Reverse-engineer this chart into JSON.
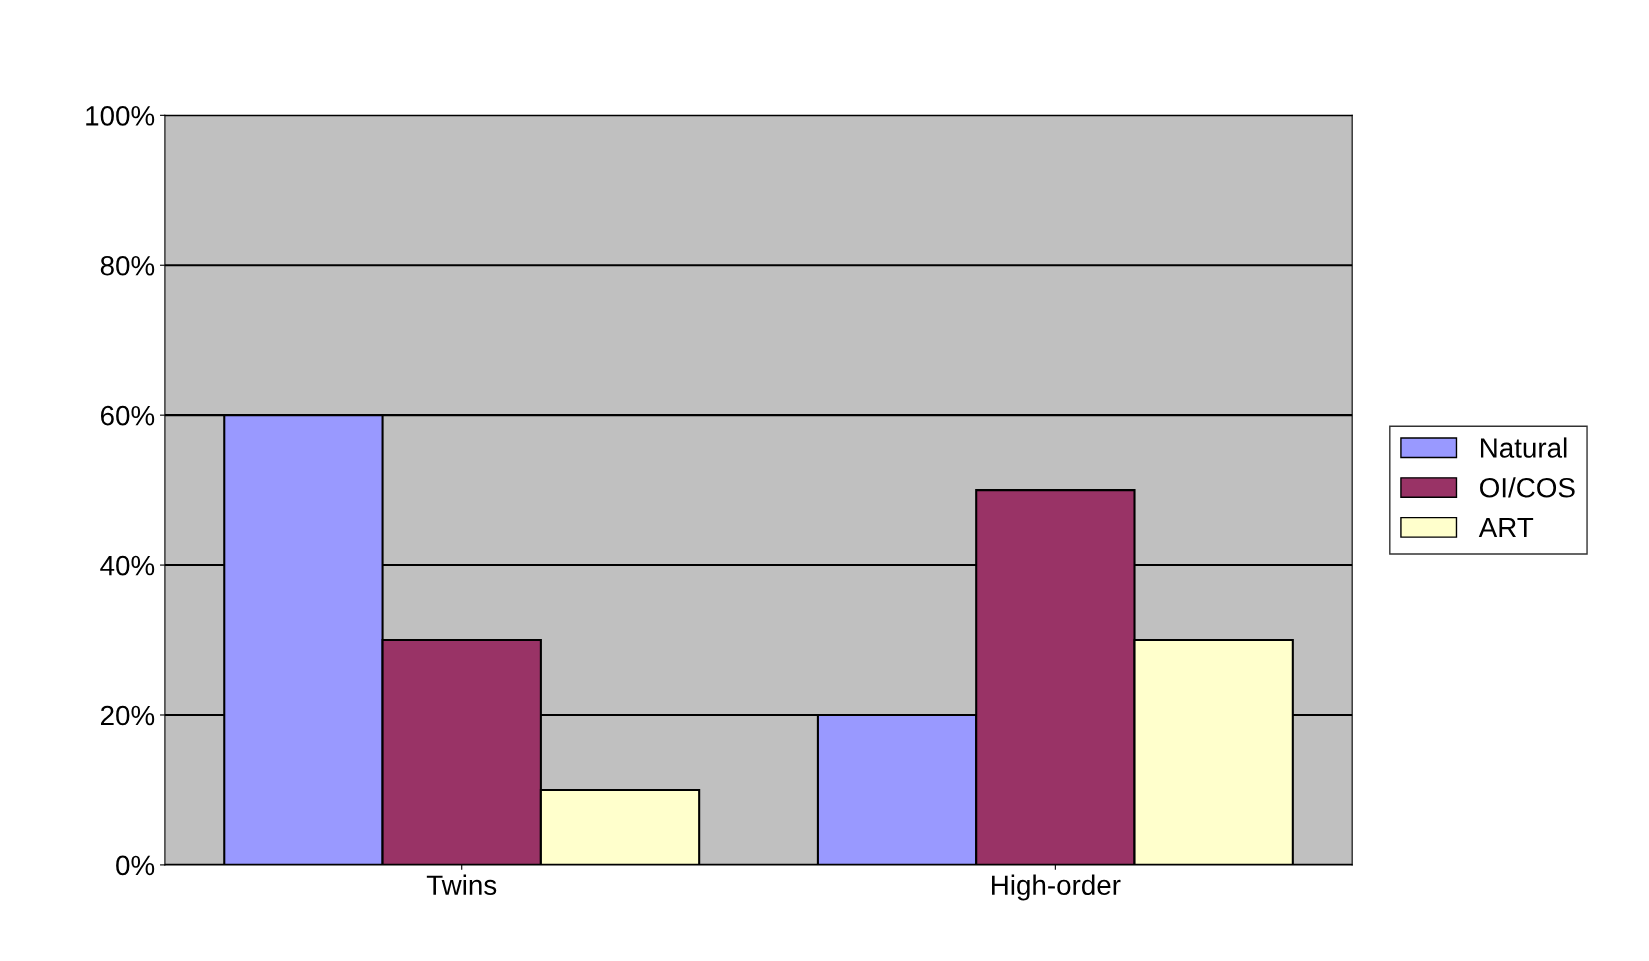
{
  "chart_data": {
    "type": "bar",
    "categories": [
      "Twins",
      "High-order"
    ],
    "series": [
      {
        "name": "Natural",
        "color": "#9999ff",
        "values": [
          60,
          20
        ]
      },
      {
        "name": "OI/COS",
        "color": "#993366",
        "values": [
          30,
          50
        ]
      },
      {
        "name": "ART",
        "color": "#ffffcc",
        "values": [
          10,
          30
        ]
      }
    ],
    "ylim": [
      0,
      100
    ],
    "yticks": [
      {
        "value": 0,
        "label": "0%"
      },
      {
        "value": 20,
        "label": "20%"
      },
      {
        "value": 40,
        "label": "40%"
      },
      {
        "value": 60,
        "label": "60%"
      },
      {
        "value": 80,
        "label": "80%"
      },
      {
        "value": 100,
        "label": "100%"
      }
    ],
    "grid": "y",
    "legend": "right"
  }
}
